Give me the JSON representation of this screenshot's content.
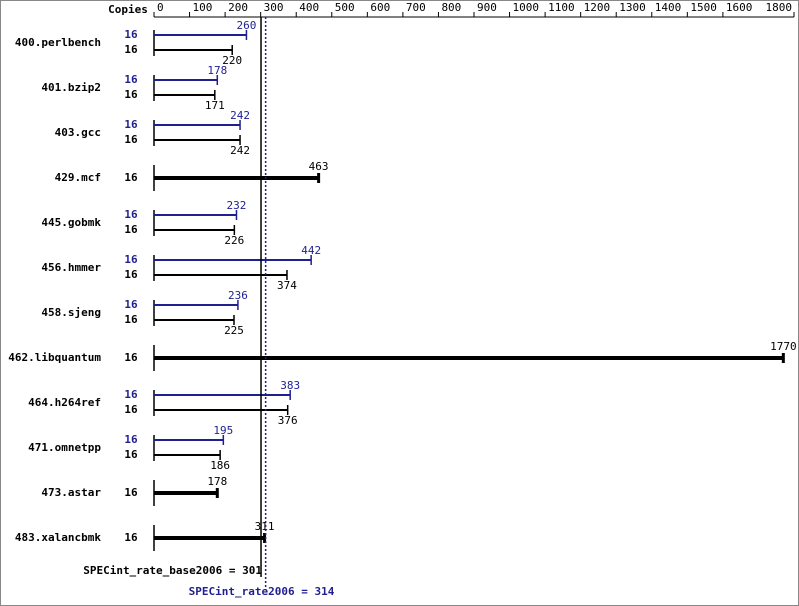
{
  "chart_data": {
    "type": "bar",
    "copies_label": "Copies",
    "categories": [
      "400.perlbench",
      "401.bzip2",
      "403.gcc",
      "429.mcf",
      "445.gobmk",
      "456.hmmer",
      "458.sjeng",
      "462.libquantum",
      "464.h264ref",
      "471.omnetpp",
      "473.astar",
      "483.xalancbmk"
    ],
    "series": [
      {
        "color": "#1f1f8f",
        "copies": [
          16,
          16,
          16,
          null,
          16,
          16,
          16,
          null,
          16,
          16,
          null,
          null
        ],
        "values": [
          260,
          178,
          242,
          null,
          232,
          442,
          236,
          null,
          383,
          195,
          null,
          null
        ]
      },
      {
        "color": "#000000",
        "copies": [
          16,
          16,
          16,
          16,
          16,
          16,
          16,
          16,
          16,
          16,
          16,
          16
        ],
        "values": [
          220,
          171,
          242,
          463,
          226,
          374,
          225,
          1770,
          376,
          186,
          178,
          311
        ]
      }
    ],
    "xlim": [
      0,
      1800
    ],
    "xticks": [
      0,
      100,
      200,
      300,
      400,
      500,
      600,
      700,
      800,
      900,
      1000,
      1100,
      1200,
      1300,
      1400,
      1500,
      1600,
      1800
    ],
    "base_score": 301,
    "base_label": "SPECint_rate_base2006 = 301",
    "peak_score": 314,
    "peak_label": "SPECint_rate2006 = 314"
  }
}
